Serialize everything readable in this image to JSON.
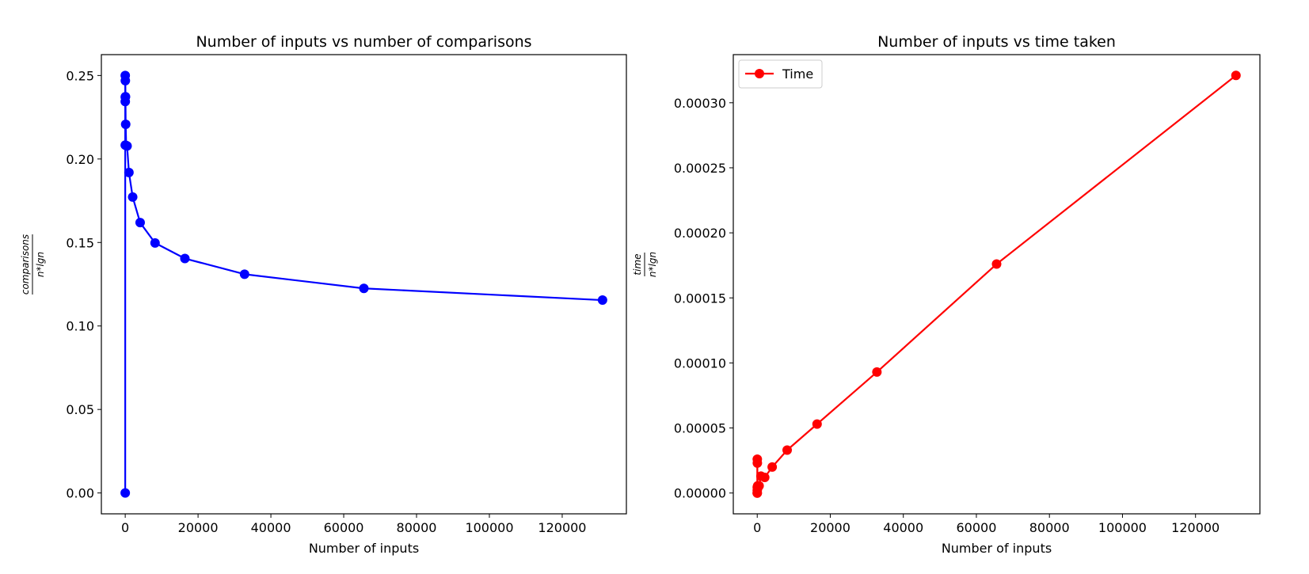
{
  "chart_data": [
    {
      "type": "line",
      "title": "Number of inputs vs number of comparisons",
      "xlabel": "Number of inputs",
      "ylabel": {
        "numerator": "comparisons",
        "denominator": "n*lgn"
      },
      "xlim": [
        -6553.5,
        137625.5
      ],
      "ylim": [
        -0.0125,
        0.2625
      ],
      "xticks": [
        0,
        20000,
        40000,
        60000,
        80000,
        100000,
        120000
      ],
      "xtick_labels": [
        "0",
        "20000",
        "40000",
        "60000",
        "80000",
        "100000",
        "120000"
      ],
      "yticks": [
        0.0,
        0.05,
        0.1,
        0.15,
        0.2,
        0.25
      ],
      "ytick_labels": [
        "0.00",
        "0.05",
        "0.10",
        "0.15",
        "0.20",
        "0.25"
      ],
      "grid": false,
      "legend": null,
      "color": "#0000ff",
      "series": [
        {
          "marker": "circle",
          "x": [
            1,
            2,
            4,
            8,
            16,
            32,
            64,
            128,
            256,
            512,
            1024,
            2048,
            4096,
            8192,
            16384,
            32768,
            65536,
            131072
          ],
          "y": [
            0.0,
            0.25,
            0.2083,
            0.2344,
            0.2371,
            0.2469,
            0.2373,
            0.2208,
            0.2081,
            0.2078,
            0.1919,
            0.1772,
            0.1619,
            0.1497,
            0.1404,
            0.131,
            0.1225,
            0.1155
          ]
        }
      ]
    },
    {
      "type": "line",
      "title": "Number of inputs vs time taken",
      "xlabel": "Number of inputs",
      "ylabel": {
        "numerator": "time",
        "denominator": "n*lgn"
      },
      "xlim": [
        -6553.5,
        137625.5
      ],
      "ylim": [
        -1.6e-05,
        0.000337
      ],
      "xticks": [
        0,
        20000,
        40000,
        60000,
        80000,
        100000,
        120000
      ],
      "xtick_labels": [
        "0",
        "20000",
        "40000",
        "60000",
        "80000",
        "100000",
        "120000"
      ],
      "yticks": [
        0.0,
        5e-05,
        0.0001,
        0.00015,
        0.0002,
        0.00025,
        0.0003
      ],
      "ytick_labels": [
        "0.00000",
        "0.00005",
        "0.00010",
        "0.00015",
        "0.00020",
        "0.00025",
        "0.00030"
      ],
      "grid": false,
      "legend": "top-left",
      "color": "#ff0000",
      "series": [
        {
          "name": "Time",
          "marker": "circle",
          "x": [
            1,
            2,
            4,
            8,
            16,
            32,
            64,
            128,
            256,
            512,
            1024,
            2048,
            4096,
            8192,
            16384,
            32768,
            65536,
            131072
          ],
          "y": [
            0.0,
            0.0,
            2e-06,
            4.5e-06,
            2.6e-05,
            2.3e-05,
            4e-06,
            5.5e-06,
            4.5e-06,
            5.5e-06,
            1.3e-05,
            1.2e-05,
            2e-05,
            3.3e-05,
            5.3e-05,
            9.3e-05,
            0.000176,
            0.000321
          ]
        }
      ]
    }
  ]
}
